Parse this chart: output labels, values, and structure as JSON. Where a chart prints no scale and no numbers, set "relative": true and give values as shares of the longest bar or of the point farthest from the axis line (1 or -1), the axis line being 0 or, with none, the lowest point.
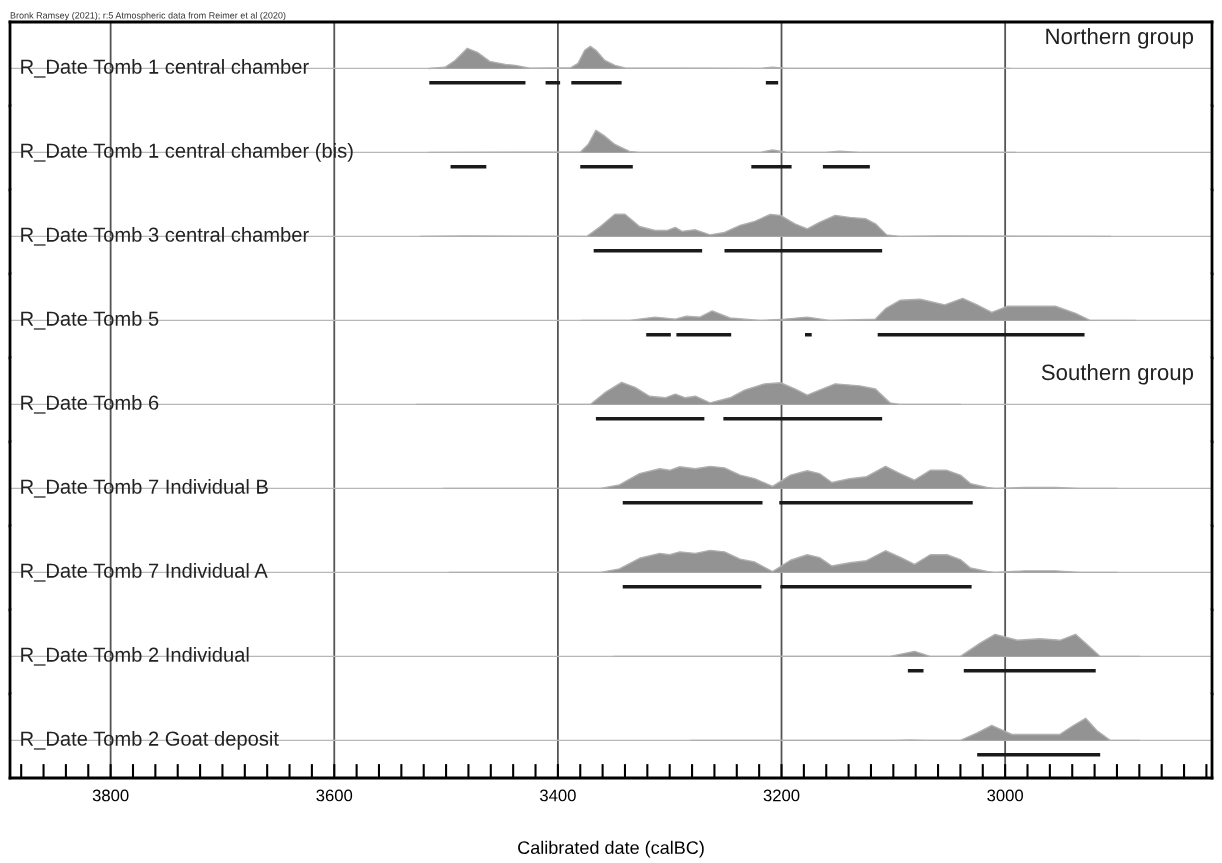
{
  "chart_data": [
    {
      "type": "area",
      "title": "R_Date Tomb 1 central chamber",
      "relative": true,
      "grid": "x",
      "legend": false,
      "tick_labels": false,
      "xlim": [
        3890,
        2815
      ],
      "xticks": [
        3800,
        3600,
        3400,
        3200,
        3000
      ],
      "annotations": [
        "Bronk Ramsey (2021); r:5 Atmospheric data from Reimer et al (2020)",
        "Northern group"
      ],
      "series": [
        {
          "color": "#939393",
          "x": [
            3515,
            3501,
            3492,
            3481,
            3472,
            3461,
            3447,
            3438,
            3425,
            3404,
            3389,
            3382,
            3376,
            3371,
            3366,
            3358,
            3349,
            3340,
            3219,
            3208,
            3196,
            2996
          ],
          "values": [
            0,
            0.05,
            0.36,
            0.91,
            0.73,
            0.32,
            0.18,
            0.14,
            0.01,
            0.02,
            0.02,
            0.23,
            0.82,
            1,
            0.82,
            0.36,
            0.14,
            0.02,
            0,
            0.05,
            0,
            0
          ]
        },
        {
          "type": "line",
          "color": "#1a1a1a",
          "x": [
            3515,
            3429,
            null,
            3411,
            3398,
            null,
            3388,
            3343,
            null,
            3214,
            3203
          ],
          "values": [
            -0.65,
            -0.65,
            null,
            -0.65,
            -0.65,
            null,
            -0.65,
            -0.65,
            null,
            -0.65,
            -0.65
          ]
        }
      ]
    },
    {
      "type": "area",
      "title": "R_Date Tomb 1 central chamber (bis)",
      "relative": true,
      "grid": "x",
      "legend": false,
      "tick_labels": false,
      "xlim": [
        3890,
        2815
      ],
      "xticks": [
        3800,
        3600,
        3400,
        3200,
        3000
      ],
      "series": [
        {
          "color": "#939393",
          "x": [
            3515,
            3380,
            3373,
            3366,
            3359,
            3349,
            3336,
            3327,
            3219,
            3208,
            3196,
            3161,
            3148,
            3130,
            2991
          ],
          "values": [
            0,
            0.01,
            0.36,
            1,
            0.77,
            0.36,
            0.05,
            0,
            0,
            0.11,
            0.01,
            0,
            0.05,
            0,
            0
          ]
        },
        {
          "type": "line",
          "color": "#1a1a1a",
          "x": [
            3496,
            3464,
            null,
            3380,
            3333,
            null,
            3227,
            3191,
            null,
            3163,
            3121
          ],
          "values": [
            -0.65,
            -0.65,
            null,
            -0.65,
            -0.65,
            null,
            -0.65,
            -0.65,
            null,
            -0.65,
            -0.65
          ]
        }
      ]
    },
    {
      "type": "area",
      "title": "R_Date Tomb 3 central chamber",
      "relative": true,
      "grid": "x",
      "legend": false,
      "tick_labels": false,
      "xlim": [
        3890,
        2815
      ],
      "xticks": [
        3800,
        3600,
        3400,
        3200,
        3000
      ],
      "series": [
        {
          "color": "#939393",
          "x": [
            3523,
            3483,
            3374,
            3362,
            3349,
            3340,
            3327,
            3313,
            3302,
            3295,
            3289,
            3277,
            3264,
            3251,
            3237,
            3224,
            3210,
            3201,
            3188,
            3177,
            3166,
            3152,
            3139,
            3125,
            3116,
            3106,
            3094,
            3058,
            2906
          ],
          "values": [
            0,
            0.02,
            0,
            0.45,
            1,
            1,
            0.45,
            0.27,
            0.27,
            0.41,
            0.23,
            0.3,
            0.07,
            0.18,
            0.5,
            0.68,
            1,
            0.95,
            0.57,
            0.34,
            0.64,
            0.95,
            0.86,
            0.8,
            0.57,
            0.07,
            0,
            0.02,
            0
          ]
        },
        {
          "type": "line",
          "color": "#1a1a1a",
          "x": [
            3368,
            3271,
            null,
            3251,
            3110
          ],
          "values": [
            -0.65,
            -0.65,
            null,
            -0.65,
            -0.65
          ]
        }
      ]
    },
    {
      "type": "area",
      "title": "R_Date Tomb 5",
      "relative": true,
      "grid": "x",
      "legend": false,
      "tick_labels": false,
      "xlim": [
        3890,
        2815
      ],
      "xticks": [
        3800,
        3600,
        3400,
        3200,
        3000
      ],
      "series": [
        {
          "color": "#939393",
          "x": [
            3379,
            3336,
            3313,
            3295,
            3285,
            3273,
            3262,
            3246,
            3219,
            3197,
            3177,
            3157,
            3116,
            3107,
            3094,
            3076,
            3054,
            3038,
            3025,
            3012,
            2998,
            2978,
            2955,
            2937,
            2924,
            2884
          ],
          "values": [
            0,
            0,
            0.15,
            0.06,
            0.19,
            0.15,
            0.43,
            0.11,
            0,
            0.06,
            0.15,
            0,
            0.06,
            0.53,
            0.91,
            0.96,
            0.7,
            1,
            0.7,
            0.36,
            0.64,
            0.64,
            0.64,
            0.32,
            0,
            0
          ]
        },
        {
          "type": "line",
          "color": "#1a1a1a",
          "x": [
            3321,
            3299,
            null,
            3294,
            3245,
            null,
            3179,
            3173,
            null,
            3114,
            2929
          ],
          "values": [
            -0.65,
            -0.65,
            null,
            -0.65,
            -0.65,
            null,
            -0.65,
            -0.65,
            null,
            -0.65,
            -0.65
          ]
        }
      ]
    },
    {
      "type": "area",
      "title": "R_Date Tomb 6",
      "relative": true,
      "grid": "x",
      "legend": false,
      "tick_labels": false,
      "xlim": [
        3890,
        2815
      ],
      "xticks": [
        3800,
        3600,
        3400,
        3200,
        3000
      ],
      "annotations": [
        "Southern group"
      ],
      "series": [
        {
          "color": "#939393",
          "x": [
            3526,
            3371,
            3358,
            3343,
            3331,
            3318,
            3304,
            3295,
            3286,
            3277,
            3264,
            3246,
            3233,
            3215,
            3201,
            3188,
            3177,
            3166,
            3152,
            3130,
            3116,
            3103,
            3094,
            3040
          ],
          "values": [
            0,
            0,
            0.53,
            1,
            0.77,
            0.37,
            0.3,
            0.47,
            0.3,
            0.37,
            0.07,
            0.3,
            0.65,
            0.93,
            0.98,
            0.7,
            0.42,
            0.65,
            0.93,
            0.84,
            0.7,
            0.07,
            0,
            0
          ]
        },
        {
          "type": "line",
          "color": "#1a1a1a",
          "x": [
            3366,
            3269,
            null,
            3252,
            3110
          ],
          "values": [
            -0.65,
            -0.65,
            null,
            -0.65,
            -0.65
          ]
        }
      ]
    },
    {
      "type": "area",
      "title": "R_Date Tomb 7 Individual B",
      "relative": true,
      "grid": "x",
      "legend": false,
      "tick_labels": false,
      "xlim": [
        3890,
        2815
      ],
      "xticks": [
        3800,
        3600,
        3400,
        3200,
        3000
      ],
      "series": [
        {
          "color": "#939393",
          "x": [
            3502,
            3362,
            3345,
            3327,
            3309,
            3300,
            3291,
            3277,
            3264,
            3251,
            3237,
            3224,
            3208,
            3192,
            3177,
            3166,
            3155,
            3139,
            3124,
            3107,
            3094,
            3081,
            3067,
            3052,
            3040,
            3031,
            3016,
            3009,
            2982,
            2955,
            2933,
            2900
          ],
          "values": [
            0,
            0,
            0.16,
            0.67,
            0.89,
            0.82,
            0.98,
            0.89,
            1,
            0.93,
            0.6,
            0.44,
            0.09,
            0.6,
            0.8,
            0.67,
            0.27,
            0.44,
            0.53,
            1,
            0.67,
            0.38,
            0.82,
            0.82,
            0.6,
            0.22,
            0.04,
            0,
            0.04,
            0.04,
            0,
            0
          ]
        },
        {
          "type": "line",
          "color": "#1a1a1a",
          "x": [
            3342,
            3217,
            null,
            3202,
            3029
          ],
          "values": [
            -0.65,
            -0.65,
            null,
            -0.65,
            -0.65
          ]
        }
      ]
    },
    {
      "type": "area",
      "title": "R_Date Tomb 7 Individual A",
      "relative": true,
      "grid": "x",
      "legend": false,
      "tick_labels": false,
      "xlim": [
        3890,
        2815
      ],
      "xticks": [
        3800,
        3600,
        3400,
        3200,
        3000
      ],
      "series": [
        {
          "color": "#939393",
          "x": [
            3497,
            3362,
            3345,
            3327,
            3309,
            3300,
            3291,
            3277,
            3264,
            3251,
            3237,
            3224,
            3208,
            3192,
            3177,
            3166,
            3155,
            3139,
            3124,
            3107,
            3094,
            3081,
            3067,
            3052,
            3040,
            3031,
            3016,
            3009,
            2982,
            2955,
            2933,
            2900
          ],
          "values": [
            0,
            0,
            0.16,
            0.64,
            0.86,
            0.8,
            0.93,
            0.86,
            1,
            0.93,
            0.6,
            0.47,
            0.04,
            0.55,
            0.8,
            0.67,
            0.29,
            0.44,
            0.53,
            0.98,
            0.69,
            0.36,
            0.8,
            0.8,
            0.58,
            0.2,
            0.04,
            0,
            0.07,
            0.07,
            0,
            0
          ]
        },
        {
          "type": "line",
          "color": "#1a1a1a",
          "x": [
            3342,
            3218,
            null,
            3201,
            3030
          ],
          "values": [
            -0.65,
            -0.65,
            null,
            -0.65,
            -0.65
          ]
        }
      ]
    },
    {
      "type": "area",
      "title": "R_Date Tomb 2 Individual",
      "relative": true,
      "grid": "x",
      "legend": false,
      "tick_labels": false,
      "xlim": [
        3890,
        2815
      ],
      "xticks": [
        3800,
        3600,
        3400,
        3200,
        3000
      ],
      "series": [
        {
          "color": "#939393",
          "x": [
            3350,
            3103,
            3081,
            3067,
            3040,
            3022,
            3009,
            2989,
            2969,
            2951,
            2937,
            2927,
            2915,
            2880
          ],
          "values": [
            0,
            0,
            0.23,
            0,
            0,
            0.61,
            1,
            0.73,
            0.8,
            0.73,
            1,
            0.55,
            0,
            0
          ]
        },
        {
          "type": "line",
          "color": "#1a1a1a",
          "x": [
            3087,
            3073,
            null,
            3037,
            2919
          ],
          "values": [
            -0.65,
            -0.65,
            null,
            -0.65,
            -0.65
          ]
        }
      ]
    },
    {
      "type": "area",
      "title": "R_Date Tomb 2 Goat deposit",
      "relative": true,
      "grid": "x",
      "legend": false,
      "tick_labels": "x",
      "xlim": [
        3890,
        2815
      ],
      "xlabel": "Calibrated date (calBC)",
      "xticks": [
        {
          "value": 3880,
          "label": null
        },
        {
          "value": 3860,
          "label": null
        },
        {
          "value": 3840,
          "label": null
        },
        {
          "value": 3820,
          "label": null
        },
        3800,
        {
          "value": 3780,
          "label": null
        },
        {
          "value": 3760,
          "label": null
        },
        {
          "value": 3740,
          "label": null
        },
        {
          "value": 3720,
          "label": null
        },
        {
          "value": 3700,
          "label": null
        },
        {
          "value": 3680,
          "label": null
        },
        {
          "value": 3660,
          "label": null
        },
        {
          "value": 3640,
          "label": null
        },
        {
          "value": 3620,
          "label": null
        },
        3600,
        {
          "value": 3580,
          "label": null
        },
        {
          "value": 3560,
          "label": null
        },
        {
          "value": 3540,
          "label": null
        },
        {
          "value": 3520,
          "label": null
        },
        {
          "value": 3500,
          "label": null
        },
        {
          "value": 3480,
          "label": null
        },
        {
          "value": 3460,
          "label": null
        },
        {
          "value": 3440,
          "label": null
        },
        {
          "value": 3420,
          "label": null
        },
        3400,
        {
          "value": 3380,
          "label": null
        },
        {
          "value": 3360,
          "label": null
        },
        {
          "value": 3340,
          "label": null
        },
        {
          "value": 3320,
          "label": null
        },
        {
          "value": 3300,
          "label": null
        },
        {
          "value": 3280,
          "label": null
        },
        {
          "value": 3260,
          "label": null
        },
        {
          "value": 3240,
          "label": null
        },
        {
          "value": 3220,
          "label": null
        },
        3200,
        {
          "value": 3180,
          "label": null
        },
        {
          "value": 3160,
          "label": null
        },
        {
          "value": 3140,
          "label": null
        },
        {
          "value": 3120,
          "label": null
        },
        {
          "value": 3100,
          "label": null
        },
        {
          "value": 3080,
          "label": null
        },
        {
          "value": 3060,
          "label": null
        },
        {
          "value": 3040,
          "label": null
        },
        {
          "value": 3020,
          "label": null
        },
        3000,
        {
          "value": 2980,
          "label": null
        },
        {
          "value": 2960,
          "label": null
        },
        {
          "value": 2940,
          "label": null
        },
        {
          "value": 2920,
          "label": null
        },
        {
          "value": 2900,
          "label": null
        },
        {
          "value": 2880,
          "label": null
        },
        {
          "value": 2860,
          "label": null
        },
        {
          "value": 2840,
          "label": null
        },
        {
          "value": 2820,
          "label": null
        }
      ],
      "series": [
        {
          "color": "#939393",
          "x": [
            3281,
            3098,
            3085,
            3071,
            3040,
            3025,
            3012,
            2994,
            2973,
            2951,
            2940,
            2928,
            2918,
            2906,
            2880
          ],
          "values": [
            0,
            0,
            0.02,
            0,
            0,
            0.34,
            0.68,
            0.27,
            0.27,
            0.27,
            0.64,
            1,
            0.45,
            0,
            0
          ]
        },
        {
          "type": "line",
          "color": "#1a1a1a",
          "x": [
            3025,
            2915
          ],
          "values": [
            -0.65,
            -0.65
          ]
        }
      ]
    }
  ]
}
